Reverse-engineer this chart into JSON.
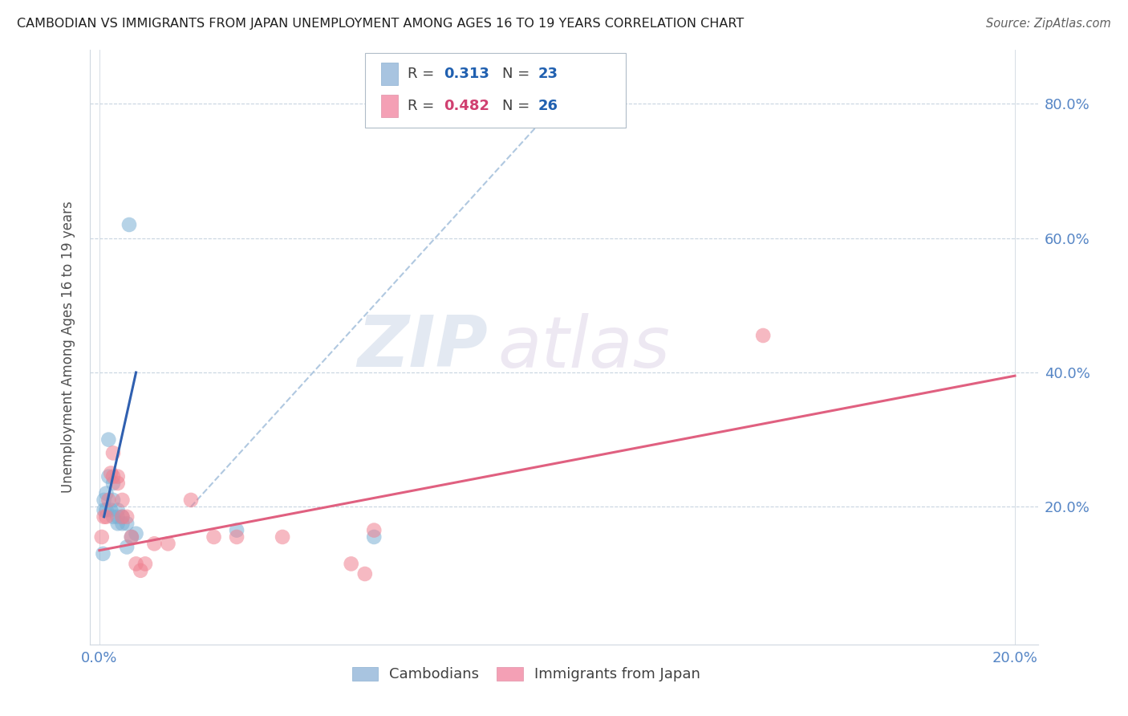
{
  "title": "CAMBODIAN VS IMMIGRANTS FROM JAPAN UNEMPLOYMENT AMONG AGES 16 TO 19 YEARS CORRELATION CHART",
  "source": "Source: ZipAtlas.com",
  "ylabel": "Unemployment Among Ages 16 to 19 years",
  "watermark": "ZIPatlas",
  "legend_color1": "#a8c4e0",
  "legend_color2": "#f4a0b5",
  "scatter_color1": "#7bafd4",
  "scatter_color2": "#f08090",
  "line_color1": "#3060b0",
  "line_color2": "#e06080",
  "dashed_line_color": "#b0c8e0",
  "cambodian_x": [
    0.0008,
    0.001,
    0.001,
    0.0015,
    0.0015,
    0.002,
    0.002,
    0.0025,
    0.003,
    0.003,
    0.003,
    0.004,
    0.004,
    0.004,
    0.005,
    0.005,
    0.006,
    0.006,
    0.0065,
    0.007,
    0.008,
    0.03,
    0.06
  ],
  "cambodian_y": [
    0.13,
    0.21,
    0.195,
    0.22,
    0.195,
    0.3,
    0.245,
    0.195,
    0.21,
    0.235,
    0.185,
    0.185,
    0.175,
    0.195,
    0.175,
    0.185,
    0.175,
    0.14,
    0.62,
    0.155,
    0.16,
    0.165,
    0.155
  ],
  "japan_x": [
    0.0005,
    0.001,
    0.0015,
    0.002,
    0.0025,
    0.003,
    0.003,
    0.004,
    0.004,
    0.005,
    0.005,
    0.006,
    0.007,
    0.008,
    0.009,
    0.01,
    0.012,
    0.015,
    0.02,
    0.025,
    0.03,
    0.04,
    0.055,
    0.058,
    0.06,
    0.145
  ],
  "japan_y": [
    0.155,
    0.185,
    0.185,
    0.21,
    0.25,
    0.245,
    0.28,
    0.245,
    0.235,
    0.185,
    0.21,
    0.185,
    0.155,
    0.115,
    0.105,
    0.115,
    0.145,
    0.145,
    0.21,
    0.155,
    0.155,
    0.155,
    0.115,
    0.1,
    0.165,
    0.455
  ],
  "blue_line_x": [
    0.001,
    0.008
  ],
  "blue_line_y": [
    0.185,
    0.4
  ],
  "pink_line_x": [
    0.0,
    0.2
  ],
  "pink_line_y": [
    0.135,
    0.395
  ],
  "dashed_line_x": [
    0.02,
    0.1
  ],
  "dashed_line_y": [
    0.2,
    0.8
  ],
  "xlim": [
    -0.002,
    0.205
  ],
  "ylim": [
    -0.005,
    0.88
  ],
  "xticks": [
    0.0,
    0.2
  ],
  "yticks": [
    0.2,
    0.4,
    0.6,
    0.8
  ]
}
